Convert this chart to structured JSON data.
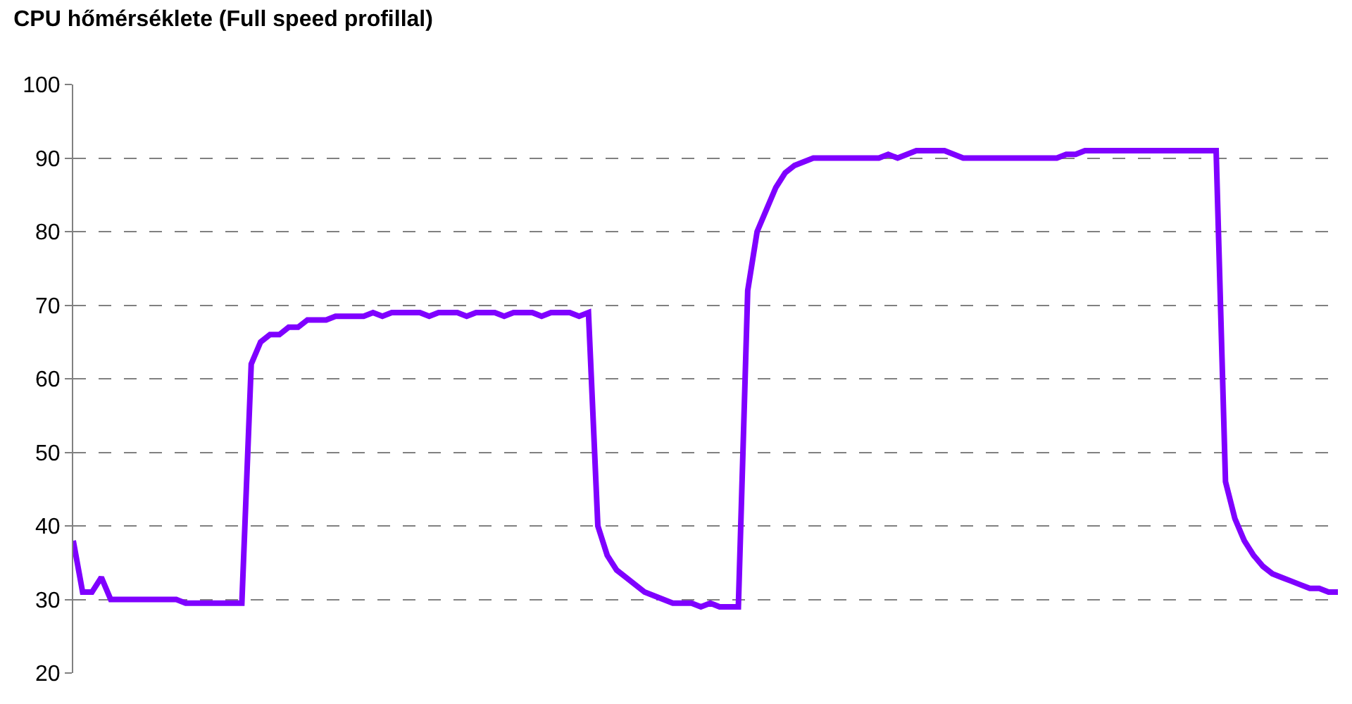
{
  "chart_data": {
    "type": "line",
    "title": "CPU hőmérséklete (Full speed profillal)",
    "categories": [
      null,
      null,
      null,
      null,
      null,
      null,
      null,
      null,
      null,
      null,
      null,
      null,
      null,
      null,
      null,
      null,
      null,
      null,
      null,
      null,
      null,
      null,
      null,
      null,
      null,
      null,
      null,
      null,
      null,
      null,
      null,
      null,
      null,
      null,
      null,
      null,
      null,
      null,
      null,
      null,
      null,
      null,
      null,
      null,
      null,
      null,
      null,
      null,
      null,
      null,
      null,
      null,
      null,
      null,
      null,
      null,
      null,
      null,
      null,
      null,
      null,
      null,
      null,
      null,
      null,
      null,
      null,
      null,
      null,
      null,
      null,
      null,
      null,
      null,
      null,
      null,
      null,
      null,
      null,
      null,
      null,
      null,
      null,
      null,
      null,
      null,
      null,
      null,
      null,
      null,
      null,
      null,
      null,
      null,
      null,
      null,
      null,
      null,
      null,
      null,
      null,
      null,
      null,
      null,
      null,
      null,
      null,
      null,
      null,
      null,
      null,
      null,
      null,
      null,
      null,
      null,
      null,
      null,
      null,
      null,
      null,
      null,
      null,
      null,
      null,
      null,
      null,
      null,
      null,
      null,
      null,
      null,
      null,
      null,
      null,
      null
    ],
    "series": [
      {
        "color": "#7f00ff",
        "values": [
          38,
          31,
          31,
          33,
          30,
          30,
          30,
          30,
          30,
          30,
          30,
          30,
          29.5,
          29.5,
          29.5,
          29.5,
          29.5,
          29.5,
          29.5,
          62,
          65,
          66,
          66,
          67,
          67,
          68,
          68,
          68,
          68.5,
          68.5,
          68.5,
          68.5,
          69,
          68.5,
          69,
          69,
          69,
          69,
          68.5,
          69,
          69,
          69,
          68.5,
          69,
          69,
          69,
          68.5,
          69,
          69,
          69,
          68.5,
          69,
          69,
          69,
          68.5,
          69,
          40,
          36,
          34,
          33,
          32,
          31,
          30.5,
          30,
          29.5,
          29.5,
          29.5,
          29,
          29.5,
          29,
          29,
          29,
          72,
          80,
          83,
          86,
          88,
          89,
          89.5,
          90,
          90,
          90,
          90,
          90,
          90,
          90,
          90,
          90.5,
          90,
          90.5,
          91,
          91,
          91,
          91,
          90.5,
          90,
          90,
          90,
          90,
          90,
          90,
          90,
          90,
          90,
          90,
          90,
          90.5,
          90.5,
          91,
          91,
          91,
          91,
          91,
          91,
          91,
          91,
          91,
          91,
          91,
          91,
          91,
          91,
          91,
          46,
          41,
          38,
          36,
          34.5,
          33.5,
          33,
          32.5,
          32,
          31.5,
          31.5,
          31,
          31
        ]
      }
    ],
    "ylim": [
      20,
      100
    ],
    "yticks": [
      20,
      30,
      40,
      50,
      60,
      70,
      80,
      90,
      100
    ],
    "grid": "y",
    "line_style": "solid",
    "marker": "none"
  }
}
